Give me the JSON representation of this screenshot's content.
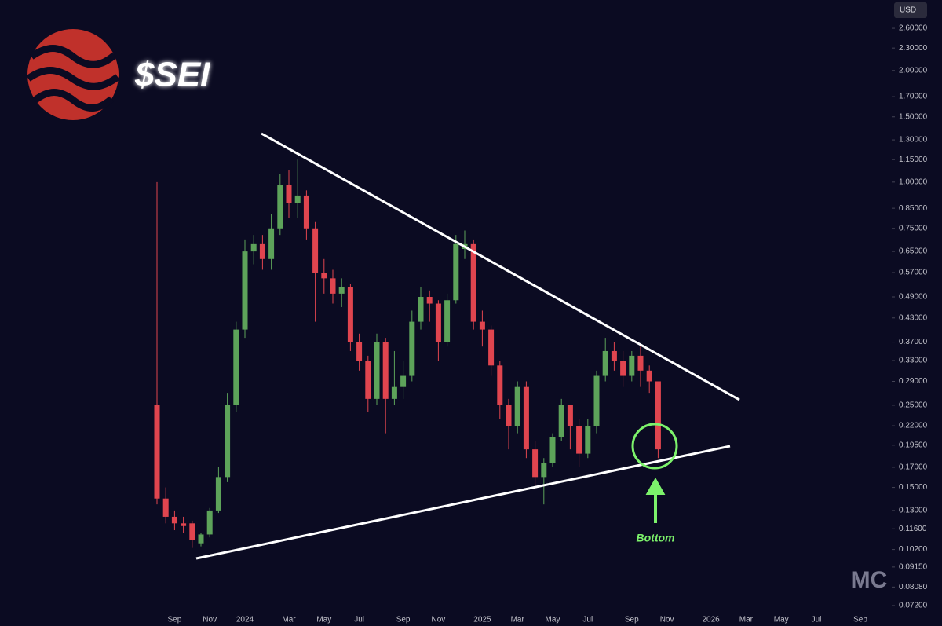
{
  "chart_data": {
    "type": "candlestick",
    "title": "$SEI",
    "currency": "USD",
    "annotation": "Bottom",
    "watermark": "MC",
    "log_scale": true,
    "up_color": "#5da35a",
    "down_color": "#e0454f",
    "categories": [
      null,
      null,
      "Sep",
      null,
      null,
      null,
      "Nov",
      null,
      null,
      null,
      "2024",
      null,
      null,
      null,
      null,
      "Mar",
      null,
      null,
      null,
      "May",
      null,
      null,
      null,
      "Jul",
      null,
      null,
      null,
      null,
      "Sep",
      null,
      null,
      null,
      "Nov",
      null,
      null,
      null,
      null,
      "2025",
      null,
      null,
      null,
      "Mar",
      null,
      null,
      null,
      "May",
      null,
      null,
      null,
      "Jul",
      null,
      null,
      null,
      null,
      "Sep",
      null,
      null,
      null,
      "Nov",
      null,
      null,
      null,
      null,
      "2026",
      null,
      null,
      null,
      "Mar",
      null,
      null,
      null,
      "May",
      null,
      null,
      null,
      "Jul",
      null,
      null,
      null,
      null,
      "Sep",
      null
    ],
    "open": [
      0.25,
      0.14,
      0.125,
      0.12,
      0.12,
      0.106,
      0.112,
      0.13,
      0.16,
      0.25,
      0.4,
      0.65,
      0.68,
      0.62,
      0.75,
      0.98,
      0.88,
      0.92,
      0.75,
      0.57,
      0.55,
      0.5,
      0.52,
      0.37,
      0.33,
      0.26,
      0.37,
      0.26,
      0.28,
      0.3,
      0.42,
      0.49,
      0.47,
      0.37,
      0.48,
      0.66,
      0.68,
      0.42,
      0.4,
      0.32,
      0.25,
      0.22,
      0.28,
      0.19,
      0.16,
      0.175,
      0.205,
      0.25,
      0.22,
      0.185,
      0.22,
      0.3,
      0.35,
      0.33,
      0.3,
      0.34,
      0.31,
      0.29,
      null,
      null,
      null,
      null,
      null,
      null,
      null,
      null,
      null,
      null,
      null,
      null,
      null,
      null,
      null,
      null,
      null,
      null,
      null,
      null,
      null,
      null,
      null,
      null
    ],
    "high": [
      1.0,
      0.15,
      0.13,
      0.125,
      0.122,
      0.113,
      0.132,
      0.17,
      0.27,
      0.42,
      0.7,
      0.72,
      0.72,
      0.82,
      1.05,
      1.08,
      1.15,
      0.95,
      0.78,
      0.62,
      0.58,
      0.55,
      0.53,
      0.39,
      0.34,
      0.39,
      0.38,
      0.35,
      0.33,
      0.45,
      0.52,
      0.51,
      0.48,
      0.5,
      0.72,
      0.74,
      0.7,
      0.45,
      0.41,
      0.33,
      0.26,
      0.29,
      0.29,
      0.2,
      0.18,
      0.21,
      0.26,
      0.25,
      0.23,
      0.23,
      0.31,
      0.38,
      0.37,
      0.35,
      0.35,
      0.36,
      0.32,
      0.29,
      null,
      null,
      null,
      null,
      null,
      null,
      null,
      null,
      null,
      null,
      null,
      null,
      null,
      null,
      null,
      null,
      null,
      null,
      null,
      null,
      null,
      null,
      null,
      null
    ],
    "low": [
      0.135,
      0.12,
      0.115,
      0.113,
      0.103,
      0.104,
      0.11,
      0.128,
      0.155,
      0.24,
      0.38,
      0.6,
      0.58,
      0.58,
      0.72,
      0.8,
      0.8,
      0.7,
      0.42,
      0.5,
      0.47,
      0.46,
      0.35,
      0.31,
      0.24,
      0.25,
      0.21,
      0.25,
      0.26,
      0.29,
      0.4,
      0.42,
      0.33,
      0.36,
      0.47,
      0.62,
      0.4,
      0.36,
      0.3,
      0.23,
      0.19,
      0.21,
      0.18,
      0.15,
      0.135,
      0.17,
      0.2,
      0.19,
      0.17,
      0.18,
      0.21,
      0.29,
      0.31,
      0.28,
      0.29,
      0.28,
      0.27,
      0.18,
      null,
      null,
      null,
      null,
      null,
      null,
      null,
      null,
      null,
      null,
      null,
      null,
      null,
      null,
      null,
      null,
      null,
      null,
      null,
      null,
      null,
      null,
      null,
      null
    ],
    "close": [
      0.14,
      0.125,
      0.12,
      0.118,
      0.108,
      0.112,
      0.13,
      0.16,
      0.25,
      0.4,
      0.65,
      0.68,
      0.62,
      0.75,
      0.98,
      0.88,
      0.92,
      0.75,
      0.57,
      0.55,
      0.5,
      0.52,
      0.37,
      0.33,
      0.26,
      0.37,
      0.26,
      0.28,
      0.3,
      0.42,
      0.49,
      0.47,
      0.37,
      0.48,
      0.68,
      0.68,
      0.42,
      0.4,
      0.32,
      0.25,
      0.22,
      0.28,
      0.19,
      0.16,
      0.175,
      0.205,
      0.25,
      0.22,
      0.185,
      0.22,
      0.3,
      0.35,
      0.33,
      0.3,
      0.34,
      0.31,
      0.29,
      0.19,
      null,
      null,
      null,
      null,
      null,
      null,
      null,
      null,
      null,
      null,
      null,
      null,
      null,
      null,
      null,
      null,
      null,
      null,
      null,
      null,
      null,
      null,
      null,
      null
    ],
    "ylim": [
      0.0706,
      3.1
    ],
    "yticks": [
      {
        "value": 2.6,
        "label": "2.60000"
      },
      {
        "value": 2.3,
        "label": "2.30000"
      },
      {
        "value": 2.0,
        "label": "2.00000"
      },
      {
        "value": 1.7,
        "label": "1.70000"
      },
      {
        "value": 1.5,
        "label": "1.50000"
      },
      {
        "value": 1.3,
        "label": "1.30000"
      },
      {
        "value": 1.15,
        "label": "1.15000"
      },
      {
        "value": 1.0,
        "label": "1.00000"
      },
      {
        "value": 0.85,
        "label": "0.85000"
      },
      {
        "value": 0.75,
        "label": "0.75000"
      },
      {
        "value": 0.65,
        "label": "0.65000"
      },
      {
        "value": 0.57,
        "label": "0.57000"
      },
      {
        "value": 0.49,
        "label": "0.49000"
      },
      {
        "value": 0.43,
        "label": "0.43000"
      },
      {
        "value": 0.37,
        "label": "0.37000"
      },
      {
        "value": 0.33,
        "label": "0.33000"
      },
      {
        "value": 0.29,
        "label": "0.29000"
      },
      {
        "value": 0.25,
        "label": "0.25000"
      },
      {
        "value": 0.22,
        "label": "0.22000"
      },
      {
        "value": 0.195,
        "label": "0.19500"
      },
      {
        "value": 0.17,
        "label": "0.17000"
      },
      {
        "value": 0.15,
        "label": "0.15000"
      },
      {
        "value": 0.13,
        "label": "0.13000"
      },
      {
        "value": 0.116,
        "label": "0.11600"
      },
      {
        "value": 0.102,
        "label": "0.10200"
      },
      {
        "value": 0.0915,
        "label": "0.09150"
      },
      {
        "value": 0.0808,
        "label": "0.08080"
      },
      {
        "value": 0.072,
        "label": "0.07200"
      }
    ]
  }
}
